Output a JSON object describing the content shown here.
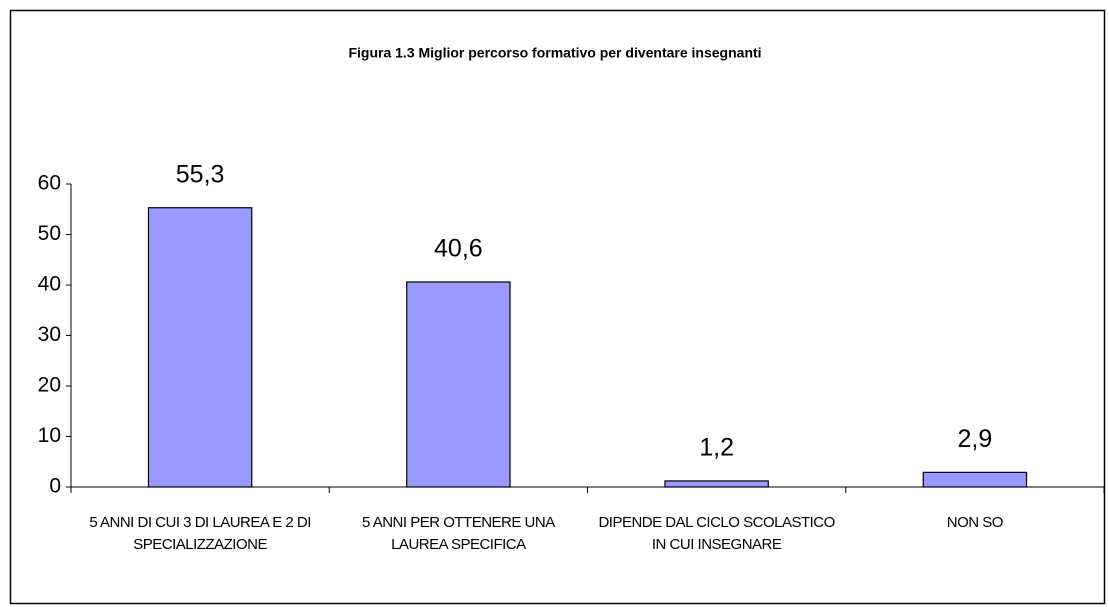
{
  "chart_data": {
    "type": "bar",
    "title": "Figura 1.3 Miglior percorso formativo per diventare insegnanti",
    "categories": [
      "5 ANNI DI CUI 3 DI LAUREA E 2 DI SPECIALIZZAZIONE",
      "5 ANNI PER OTTENERE UNA LAUREA SPECIFICA",
      "DIPENDE DAL CICLO SCOLASTICO IN CUI INSEGNARE",
      "NON SO"
    ],
    "values": [
      55.3,
      40.6,
      1.2,
      2.9
    ],
    "value_labels": [
      "55,3",
      "40,6",
      "1,2",
      "2,9"
    ],
    "color": "#9999ff",
    "ylim": [
      0,
      60
    ],
    "yticks": [
      0,
      10,
      20,
      30,
      40,
      50,
      60
    ],
    "grid": false
  }
}
